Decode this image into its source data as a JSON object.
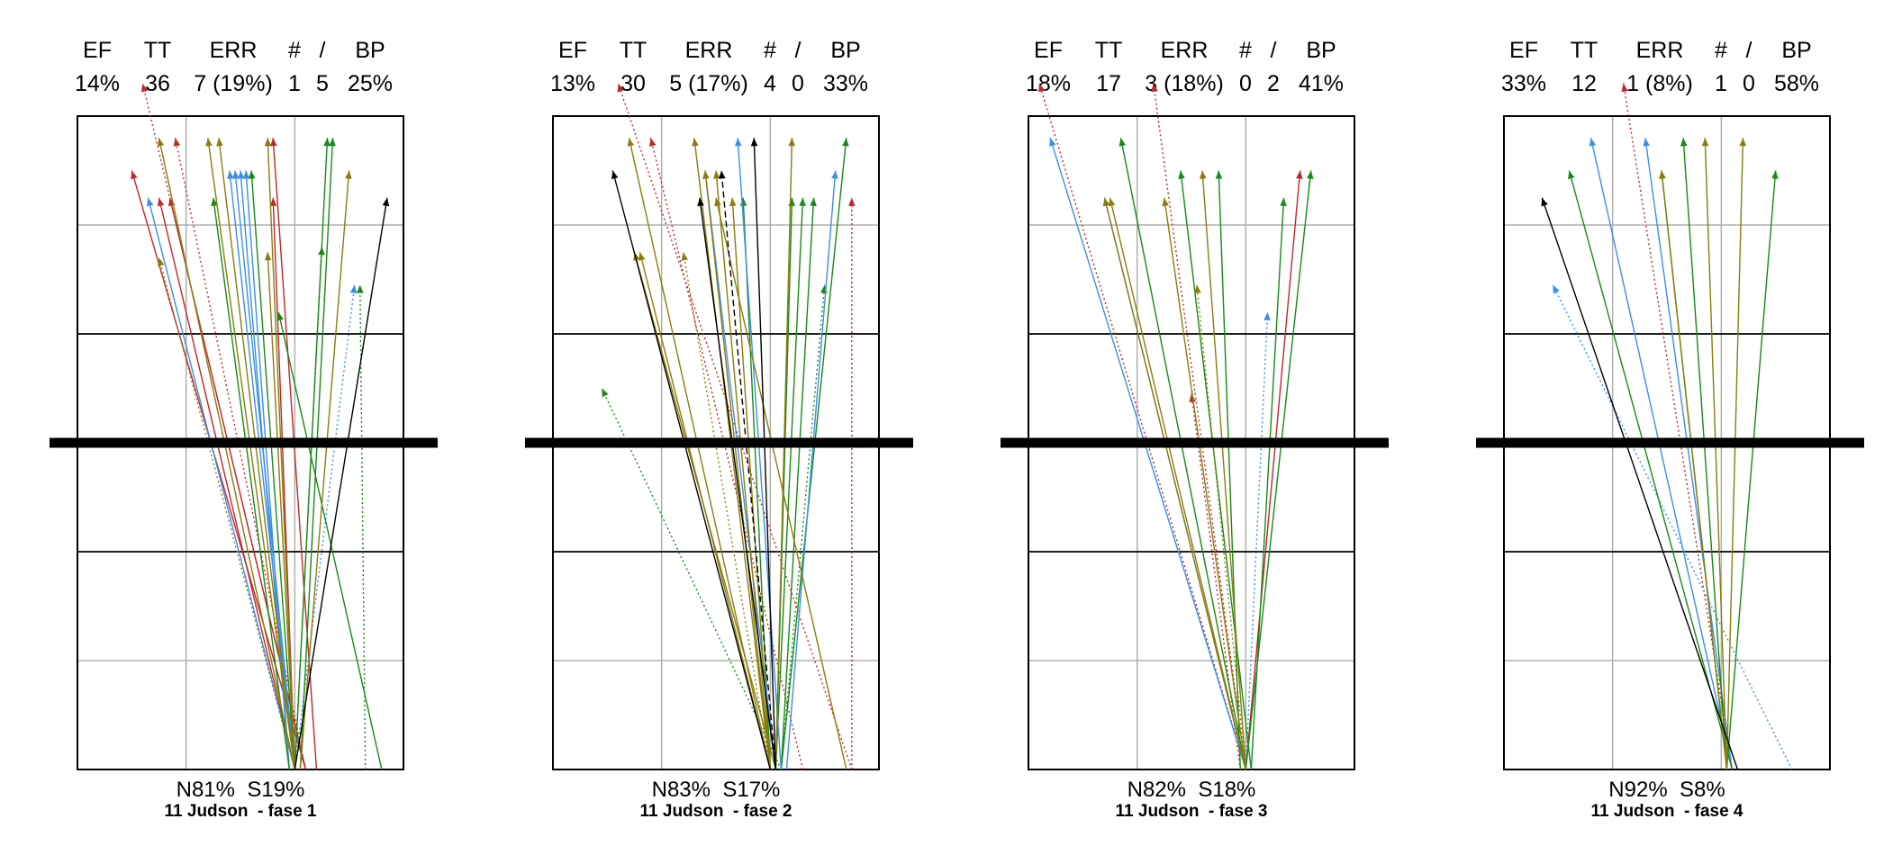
{
  "header_labels": [
    "EF",
    "TT",
    "ERR",
    "#",
    "/",
    "BP"
  ],
  "colors": {
    "red": "#c0262b",
    "green": "#178a17",
    "blue": "#3c8fe6",
    "olive": "#8a7d0c",
    "black": "#000000"
  },
  "chart_data": [
    {
      "type": "scatter",
      "stats": {
        "EF": "14%",
        "TT": "36",
        "ERR": "7 (19%)",
        "#": "1",
        "/": "5",
        "BP": "25%"
      },
      "split": {
        "N": "N81%",
        "S": "S19%"
      },
      "player": "11 Judson",
      "phase": "- fase 1",
      "xlim": [
        0,
        3
      ],
      "ylim": [
        0,
        6
      ],
      "net_y": 3,
      "arrows": [
        {
          "c": "red",
          "s": "dot",
          "x1": 2.1,
          "y1": 0,
          "x2": 0.6,
          "y2": 6.3
        },
        {
          "c": "red",
          "s": "dot",
          "x1": 2.1,
          "y1": 0,
          "x2": 0.9,
          "y2": 5.8
        },
        {
          "c": "red",
          "s": "solid",
          "x1": 2.1,
          "y1": 0,
          "x2": 0.5,
          "y2": 5.5
        },
        {
          "c": "red",
          "s": "solid",
          "x1": 2.0,
          "y1": 0,
          "x2": 0.75,
          "y2": 5.25
        },
        {
          "c": "red",
          "s": "solid",
          "x1": 2.1,
          "y1": 0,
          "x2": 0.85,
          "y2": 5.25
        },
        {
          "c": "red",
          "s": "solid",
          "x1": 2.0,
          "y1": 0,
          "x2": 1.8,
          "y2": 5.25
        },
        {
          "c": "red",
          "s": "solid",
          "x1": 2.2,
          "y1": 0,
          "x2": 1.8,
          "y2": 5.8
        },
        {
          "c": "blue",
          "s": "solid",
          "x1": 2.0,
          "y1": 0,
          "x2": 0.65,
          "y2": 5.25
        },
        {
          "c": "blue",
          "s": "solid",
          "x1": 2.0,
          "y1": 0,
          "x2": 1.4,
          "y2": 5.5
        },
        {
          "c": "blue",
          "s": "solid",
          "x1": 2.0,
          "y1": 0,
          "x2": 1.45,
          "y2": 5.5
        },
        {
          "c": "blue",
          "s": "solid",
          "x1": 1.95,
          "y1": 0,
          "x2": 1.5,
          "y2": 5.5
        },
        {
          "c": "blue",
          "s": "solid",
          "x1": 1.95,
          "y1": 0,
          "x2": 1.55,
          "y2": 5.5
        },
        {
          "c": "blue",
          "s": "dot",
          "x1": 2.0,
          "y1": 0,
          "x2": 2.55,
          "y2": 4.45
        },
        {
          "c": "green",
          "s": "solid",
          "x1": 1.95,
          "y1": 0,
          "x2": 1.25,
          "y2": 5.25
        },
        {
          "c": "green",
          "s": "solid",
          "x1": 2.0,
          "y1": 0,
          "x2": 1.6,
          "y2": 5.5
        },
        {
          "c": "green",
          "s": "solid",
          "x1": 2.0,
          "y1": 0,
          "x2": 2.3,
          "y2": 5.8
        },
        {
          "c": "green",
          "s": "solid",
          "x1": 2.05,
          "y1": 0,
          "x2": 2.35,
          "y2": 5.8
        },
        {
          "c": "green",
          "s": "solid",
          "x1": 2.8,
          "y1": 0,
          "x2": 1.85,
          "y2": 4.2
        },
        {
          "c": "green",
          "s": "dot",
          "x1": 2.65,
          "y1": 0,
          "x2": 2.6,
          "y2": 4.45
        },
        {
          "c": "green",
          "s": "dot",
          "x1": 2.0,
          "y1": 0,
          "x2": 2.25,
          "y2": 4.8
        },
        {
          "c": "olive",
          "s": "solid",
          "x1": 2.0,
          "y1": 0,
          "x2": 0.75,
          "y2": 5.8
        },
        {
          "c": "olive",
          "s": "solid",
          "x1": 2.0,
          "y1": 0,
          "x2": 1.2,
          "y2": 5.8
        },
        {
          "c": "olive",
          "s": "solid",
          "x1": 2.0,
          "y1": 0,
          "x2": 1.3,
          "y2": 5.8
        },
        {
          "c": "olive",
          "s": "solid",
          "x1": 2.0,
          "y1": 0,
          "x2": 1.75,
          "y2": 5.8
        },
        {
          "c": "olive",
          "s": "solid",
          "x1": 2.05,
          "y1": 0,
          "x2": 2.5,
          "y2": 5.5
        },
        {
          "c": "olive",
          "s": "solid",
          "x1": 2.0,
          "y1": 0,
          "x2": 1.75,
          "y2": 4.75
        },
        {
          "c": "olive",
          "s": "dot",
          "x1": 2.0,
          "y1": 0,
          "x2": 0.75,
          "y2": 4.7
        },
        {
          "c": "black",
          "s": "solid",
          "x1": 2.0,
          "y1": 0,
          "x2": 2.85,
          "y2": 5.25
        }
      ]
    },
    {
      "type": "scatter",
      "stats": {
        "EF": "13%",
        "TT": "30",
        "ERR": "5 (17%)",
        "#": "4",
        "/": "0",
        "BP": "33%"
      },
      "split": {
        "N": "N83%",
        "S": "S17%"
      },
      "player": "11 Judson",
      "phase": "- fase 2",
      "xlim": [
        0,
        3
      ],
      "ylim": [
        0,
        6
      ],
      "net_y": 3,
      "arrows": [
        {
          "c": "red",
          "s": "dot",
          "x1": 2.75,
          "y1": 0,
          "x2": 0.6,
          "y2": 6.3
        },
        {
          "c": "red",
          "s": "dot",
          "x1": 2.3,
          "y1": 0,
          "x2": 0.9,
          "y2": 5.8
        },
        {
          "c": "red",
          "s": "dot",
          "x1": 2.75,
          "y1": 0,
          "x2": 2.75,
          "y2": 5.25
        },
        {
          "c": "green",
          "s": "dot",
          "x1": 2.1,
          "y1": 0,
          "x2": 0.45,
          "y2": 3.5
        },
        {
          "c": "green",
          "s": "solid",
          "x1": 2.05,
          "y1": 0,
          "x2": 2.2,
          "y2": 5.25
        },
        {
          "c": "green",
          "s": "solid",
          "x1": 2.05,
          "y1": 0,
          "x2": 2.3,
          "y2": 5.25
        },
        {
          "c": "green",
          "s": "solid",
          "x1": 2.1,
          "y1": 0,
          "x2": 2.4,
          "y2": 5.25
        },
        {
          "c": "green",
          "s": "solid",
          "x1": 2.1,
          "y1": 0,
          "x2": 2.7,
          "y2": 5.8
        },
        {
          "c": "green",
          "s": "solid",
          "x1": 2.0,
          "y1": 0,
          "x2": 1.75,
          "y2": 5.25
        },
        {
          "c": "green",
          "s": "dot",
          "x1": 2.1,
          "y1": 0,
          "x2": 2.5,
          "y2": 4.45
        },
        {
          "c": "blue",
          "s": "solid",
          "x1": 2.1,
          "y1": 0,
          "x2": 1.7,
          "y2": 5.8
        },
        {
          "c": "blue",
          "s": "solid",
          "x1": 2.15,
          "y1": 0,
          "x2": 2.6,
          "y2": 5.5
        },
        {
          "c": "blue",
          "s": "solid",
          "x1": 2.05,
          "y1": 0,
          "x2": 1.4,
          "y2": 5.5
        },
        {
          "c": "olive",
          "s": "solid",
          "x1": 2.0,
          "y1": 0,
          "x2": 0.7,
          "y2": 5.8
        },
        {
          "c": "olive",
          "s": "solid",
          "x1": 2.0,
          "y1": 0,
          "x2": 1.3,
          "y2": 5.8
        },
        {
          "c": "olive",
          "s": "solid",
          "x1": 2.0,
          "y1": 0,
          "x2": 1.4,
          "y2": 5.5
        },
        {
          "c": "olive",
          "s": "solid",
          "x1": 2.0,
          "y1": 0,
          "x2": 1.5,
          "y2": 5.5
        },
        {
          "c": "olive",
          "s": "solid",
          "x1": 2.0,
          "y1": 0,
          "x2": 0.8,
          "y2": 4.75
        },
        {
          "c": "olive",
          "s": "solid",
          "x1": 2.05,
          "y1": 0,
          "x2": 0.75,
          "y2": 4.75
        },
        {
          "c": "olive",
          "s": "solid",
          "x1": 2.0,
          "y1": 0,
          "x2": 1.65,
          "y2": 5.25
        },
        {
          "c": "olive",
          "s": "solid",
          "x1": 2.05,
          "y1": 0,
          "x2": 2.2,
          "y2": 5.8
        },
        {
          "c": "olive",
          "s": "solid",
          "x1": 2.7,
          "y1": 0,
          "x2": 1.5,
          "y2": 5.25
        },
        {
          "c": "olive",
          "s": "dot",
          "x1": 2.0,
          "y1": 0,
          "x2": 1.2,
          "y2": 4.75
        },
        {
          "c": "black",
          "s": "solid",
          "x1": 2.0,
          "y1": 0,
          "x2": 0.55,
          "y2": 5.5
        },
        {
          "c": "black",
          "s": "solid",
          "x1": 2.05,
          "y1": 0,
          "x2": 1.35,
          "y2": 5.25
        },
        {
          "c": "black",
          "s": "solid",
          "x1": 2.05,
          "y1": 0,
          "x2": 1.85,
          "y2": 5.8
        },
        {
          "c": "black",
          "s": "dash",
          "x1": 2.05,
          "y1": 0,
          "x2": 1.55,
          "y2": 5.5
        }
      ]
    },
    {
      "type": "scatter",
      "stats": {
        "EF": "18%",
        "TT": "17",
        "ERR": "3 (18%)",
        "#": "0",
        "/": "2",
        "BP": "41%"
      },
      "split": {
        "N": "N82%",
        "S": "S18%"
      },
      "player": "11 Judson",
      "phase": "- fase 3",
      "xlim": [
        0,
        3
      ],
      "ylim": [
        0,
        6
      ],
      "net_y": 3,
      "arrows": [
        {
          "c": "red",
          "s": "dot",
          "x1": 2.0,
          "y1": 0,
          "x2": 0.1,
          "y2": 6.3
        },
        {
          "c": "red",
          "s": "dot",
          "x1": 2.0,
          "y1": 0,
          "x2": 1.15,
          "y2": 6.3
        },
        {
          "c": "red",
          "s": "dot",
          "x1": 1.95,
          "y1": 0,
          "x2": 1.5,
          "y2": 3.45
        },
        {
          "c": "red",
          "s": "solid",
          "x1": 2.0,
          "y1": 0,
          "x2": 2.5,
          "y2": 5.5
        },
        {
          "c": "blue",
          "s": "solid",
          "x1": 2.0,
          "y1": 0,
          "x2": 0.2,
          "y2": 5.8
        },
        {
          "c": "blue",
          "s": "solid",
          "x1": 2.0,
          "y1": 0,
          "x2": 0.7,
          "y2": 5.25
        },
        {
          "c": "blue",
          "s": "dot",
          "x1": 2.0,
          "y1": 0,
          "x2": 2.2,
          "y2": 4.2
        },
        {
          "c": "green",
          "s": "solid",
          "x1": 2.0,
          "y1": 0,
          "x2": 0.85,
          "y2": 5.8
        },
        {
          "c": "green",
          "s": "solid",
          "x1": 2.05,
          "y1": 0,
          "x2": 1.4,
          "y2": 5.5
        },
        {
          "c": "green",
          "s": "solid",
          "x1": 2.05,
          "y1": 0,
          "x2": 2.35,
          "y2": 5.25
        },
        {
          "c": "green",
          "s": "solid",
          "x1": 2.0,
          "y1": 0,
          "x2": 2.6,
          "y2": 5.5
        },
        {
          "c": "green",
          "s": "solid",
          "x1": 1.95,
          "y1": 0,
          "x2": 1.75,
          "y2": 5.5
        },
        {
          "c": "olive",
          "s": "solid",
          "x1": 2.0,
          "y1": 0,
          "x2": 0.7,
          "y2": 5.25
        },
        {
          "c": "olive",
          "s": "solid",
          "x1": 2.0,
          "y1": 0,
          "x2": 0.75,
          "y2": 5.25
        },
        {
          "c": "olive",
          "s": "solid",
          "x1": 2.0,
          "y1": 0,
          "x2": 1.25,
          "y2": 5.25
        },
        {
          "c": "olive",
          "s": "solid",
          "x1": 2.0,
          "y1": 0,
          "x2": 1.6,
          "y2": 5.5
        },
        {
          "c": "olive",
          "s": "dot",
          "x1": 2.0,
          "y1": 0,
          "x2": 1.55,
          "y2": 4.45
        }
      ]
    },
    {
      "type": "scatter",
      "stats": {
        "EF": "33%",
        "TT": "12",
        "ERR": "1 (8%)",
        "#": "1",
        "/": "0",
        "BP": "58%"
      },
      "split": {
        "N": "N92%",
        "S": "S8%"
      },
      "player": "11 Judson",
      "phase": "- fase 4",
      "xlim": [
        0,
        3
      ],
      "ylim": [
        0,
        6
      ],
      "net_y": 3,
      "arrows": [
        {
          "c": "red",
          "s": "dot",
          "x1": 2.1,
          "y1": 0,
          "x2": 1.1,
          "y2": 6.3
        },
        {
          "c": "blue",
          "s": "solid",
          "x1": 2.1,
          "y1": 0,
          "x2": 0.8,
          "y2": 5.8
        },
        {
          "c": "blue",
          "s": "solid",
          "x1": 2.1,
          "y1": 0,
          "x2": 1.3,
          "y2": 5.8
        },
        {
          "c": "blue",
          "s": "dot",
          "x1": 2.65,
          "y1": 0,
          "x2": 0.45,
          "y2": 4.45
        },
        {
          "c": "green",
          "s": "solid",
          "x1": 2.1,
          "y1": 0,
          "x2": 0.6,
          "y2": 5.5
        },
        {
          "c": "green",
          "s": "solid",
          "x1": 2.05,
          "y1": 0,
          "x2": 1.45,
          "y2": 5.5
        },
        {
          "c": "green",
          "s": "solid",
          "x1": 2.05,
          "y1": 0,
          "x2": 1.65,
          "y2": 5.8
        },
        {
          "c": "green",
          "s": "solid",
          "x1": 2.05,
          "y1": 0,
          "x2": 2.5,
          "y2": 5.5
        },
        {
          "c": "olive",
          "s": "solid",
          "x1": 2.05,
          "y1": 0,
          "x2": 1.85,
          "y2": 5.8
        },
        {
          "c": "olive",
          "s": "solid",
          "x1": 2.05,
          "y1": 0,
          "x2": 2.2,
          "y2": 5.8
        },
        {
          "c": "olive",
          "s": "solid",
          "x1": 2.05,
          "y1": 0,
          "x2": 1.45,
          "y2": 5.5
        },
        {
          "c": "black",
          "s": "solid",
          "x1": 2.15,
          "y1": 0,
          "x2": 0.35,
          "y2": 5.25
        }
      ]
    }
  ]
}
